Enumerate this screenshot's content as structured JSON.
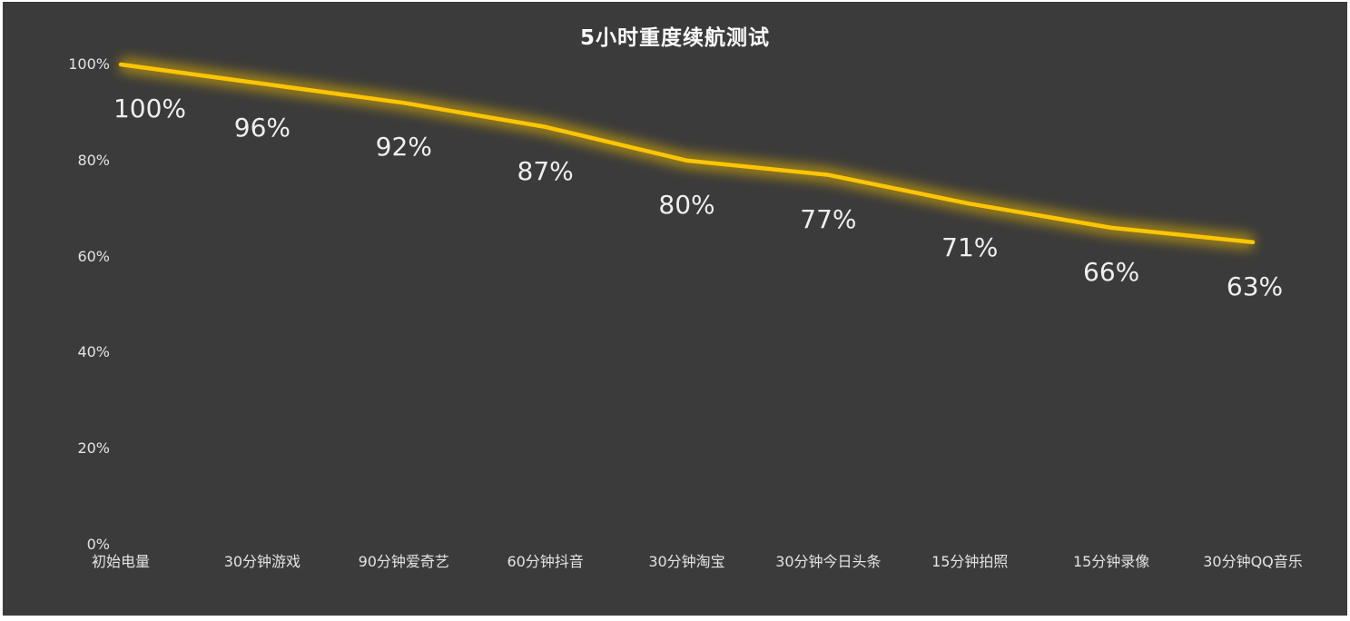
{
  "chart_data": {
    "type": "line",
    "title": "5小时重度续航测试",
    "categories": [
      "初始电量",
      "30分钟游戏",
      "90分钟爱奇艺",
      "60分钟抖音",
      "30分钟淘宝",
      "30分钟今日头条",
      "15分钟拍照",
      "15分钟录像",
      "30分钟QQ音乐"
    ],
    "values": [
      100,
      96,
      92,
      87,
      80,
      77,
      71,
      66,
      63
    ],
    "value_labels": [
      "100%",
      "96%",
      "92%",
      "87%",
      "80%",
      "77%",
      "71%",
      "66%",
      "63%"
    ],
    "yticks": [
      "100%",
      "80%",
      "60%",
      "40%",
      "20%",
      "0%"
    ],
    "ytick_values": [
      100,
      80,
      60,
      40,
      20,
      0
    ],
    "xlabel": "",
    "ylabel": "",
    "ylim": [
      0,
      100
    ],
    "grid": false,
    "legend": false
  },
  "colors": {
    "background": "#3B3B3B",
    "line": "#FFC600",
    "line_glow": "#D8AC00",
    "text": "#EFEFEF"
  }
}
